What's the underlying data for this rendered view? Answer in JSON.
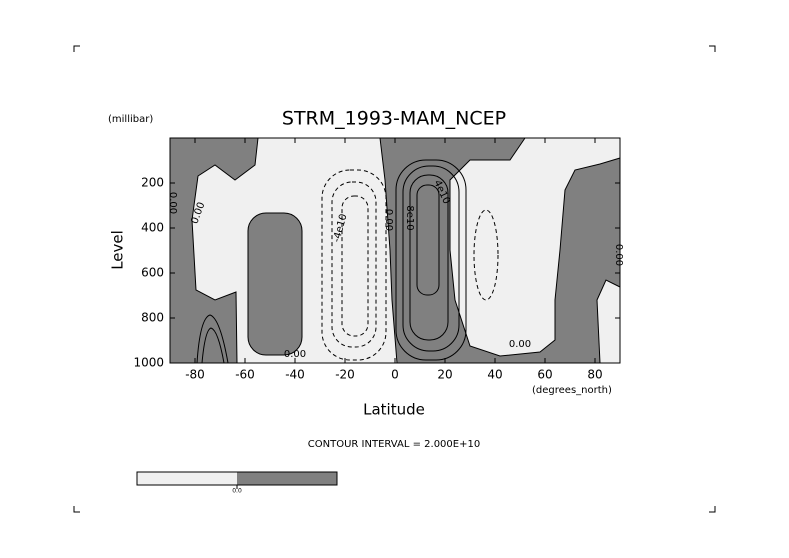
{
  "chart_data": {
    "type": "contour",
    "title": "STRM_1993-MAM_NCEP",
    "x_label": "Latitude",
    "x_unit": "(degrees_north)",
    "y_label": "Level",
    "y_unit": "(millibar)",
    "note": "CONTOUR INTERVAL = 2.000E+10",
    "xlim": [
      -90,
      90
    ],
    "xticks": [
      -80,
      -60,
      -40,
      -20,
      0,
      20,
      40,
      60,
      80
    ],
    "ylim": [
      1000,
      0
    ],
    "yticks": [
      200,
      400,
      600,
      800,
      1000
    ],
    "contour_levels": [
      {
        "value": 0,
        "label": "0.00"
      },
      {
        "value": 40000000000,
        "label": "4e10"
      },
      {
        "value": 80000000000,
        "label": "8e10"
      },
      {
        "value": -40000000000,
        "label": "-4e10"
      }
    ],
    "negative_color": "#f0f0f0",
    "positive_color": "#808080",
    "colorbar_ticks": [
      {
        "value": 0,
        "label": "0.0"
      }
    ]
  }
}
